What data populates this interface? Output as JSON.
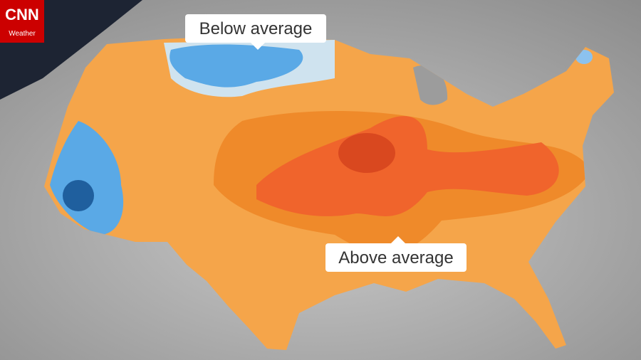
{
  "logo": {
    "brand": "CNN",
    "section": "Weather"
  },
  "labels": {
    "below": "Below average",
    "above": "Above average"
  }
}
